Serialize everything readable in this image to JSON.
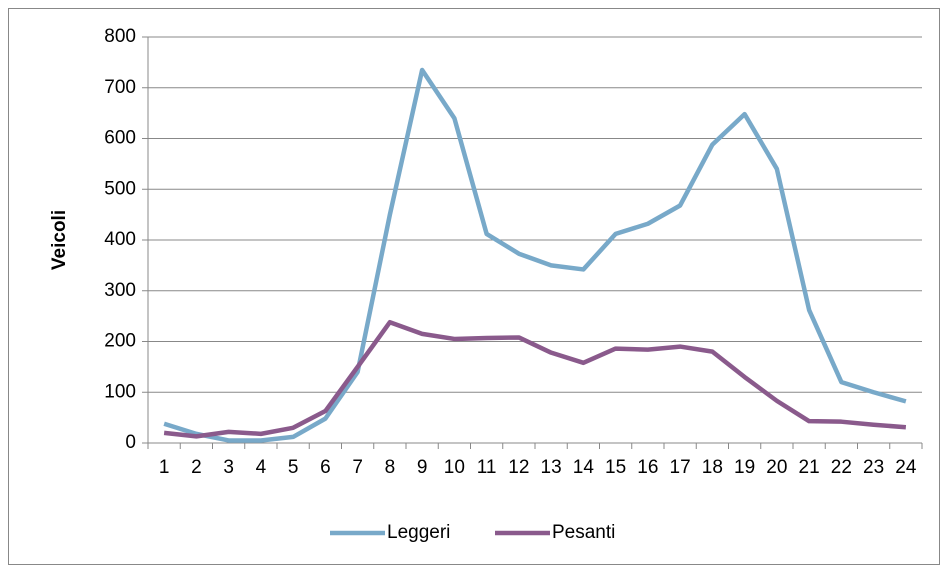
{
  "chart_data": {
    "type": "line",
    "y_label": "Veicoli",
    "categories": [
      "1",
      "2",
      "3",
      "4",
      "5",
      "6",
      "7",
      "8",
      "9",
      "10",
      "11",
      "12",
      "13",
      "14",
      "15",
      "16",
      "17",
      "18",
      "19",
      "20",
      "21",
      "22",
      "23",
      "24"
    ],
    "series": [
      {
        "name": "Leggeri",
        "color": "#78a9c9",
        "values": [
          38,
          18,
          5,
          5,
          12,
          48,
          140,
          450,
          735,
          640,
          412,
          373,
          350,
          342,
          412,
          432,
          468,
          588,
          648,
          540,
          262,
          120,
          100,
          82
        ]
      },
      {
        "name": "Pesanti",
        "color": "#8a5a8c",
        "values": [
          20,
          13,
          22,
          18,
          30,
          63,
          150,
          238,
          215,
          205,
          207,
          208,
          178,
          158,
          186,
          184,
          190,
          180,
          130,
          83,
          43,
          42,
          36,
          31
        ]
      }
    ],
    "ylim": [
      0,
      800
    ],
    "yticks": [
      0,
      100,
      200,
      300,
      400,
      500,
      600,
      700,
      800
    ],
    "grid": true,
    "legend": "bottom"
  }
}
